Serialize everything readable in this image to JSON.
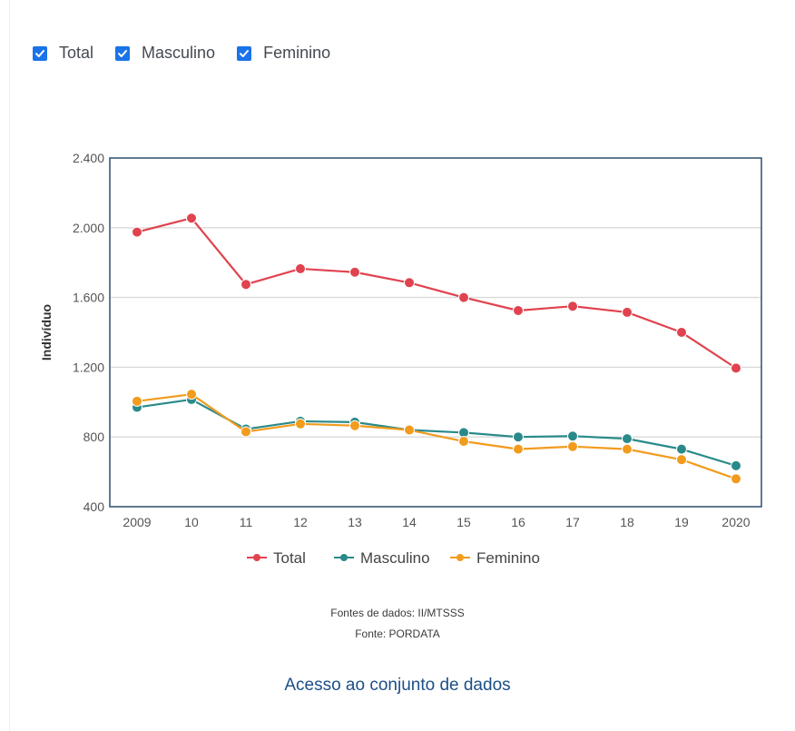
{
  "filters": [
    {
      "label": "Total",
      "checked": true
    },
    {
      "label": "Masculino",
      "checked": true
    },
    {
      "label": "Feminino",
      "checked": true
    }
  ],
  "chart_data": {
    "type": "line",
    "title": "",
    "xlabel": "",
    "ylabel": "Indivíduo",
    "categories": [
      "2009",
      "10",
      "11",
      "12",
      "13",
      "14",
      "15",
      "16",
      "17",
      "18",
      "19",
      "2020"
    ],
    "ylim": [
      400,
      2400
    ],
    "yticks": [
      400,
      800,
      1200,
      1600,
      2000,
      2400
    ],
    "ytick_labels": [
      "400",
      "800",
      "1.200",
      "1.600",
      "2.000",
      "2.400"
    ],
    "grid": true,
    "legend_position": "bottom",
    "series": [
      {
        "name": "Total",
        "color": "#e0434f",
        "values": [
          1975,
          2055,
          1675,
          1765,
          1745,
          1685,
          1600,
          1525,
          1550,
          1515,
          1400,
          1195
        ]
      },
      {
        "name": "Masculino",
        "color": "#2a8a8a",
        "values": [
          970,
          1015,
          845,
          890,
          885,
          840,
          825,
          800,
          805,
          790,
          730,
          635
        ]
      },
      {
        "name": "Feminino",
        "color": "#f29b1d",
        "values": [
          1005,
          1045,
          830,
          875,
          865,
          840,
          775,
          730,
          745,
          730,
          670,
          560
        ]
      }
    ]
  },
  "footer": {
    "sources_line": "Fontes de dados: II/MTSSS",
    "source_line": "Fonte: PORDATA",
    "dataset_link": "Acesso ao conjunto de dados"
  }
}
